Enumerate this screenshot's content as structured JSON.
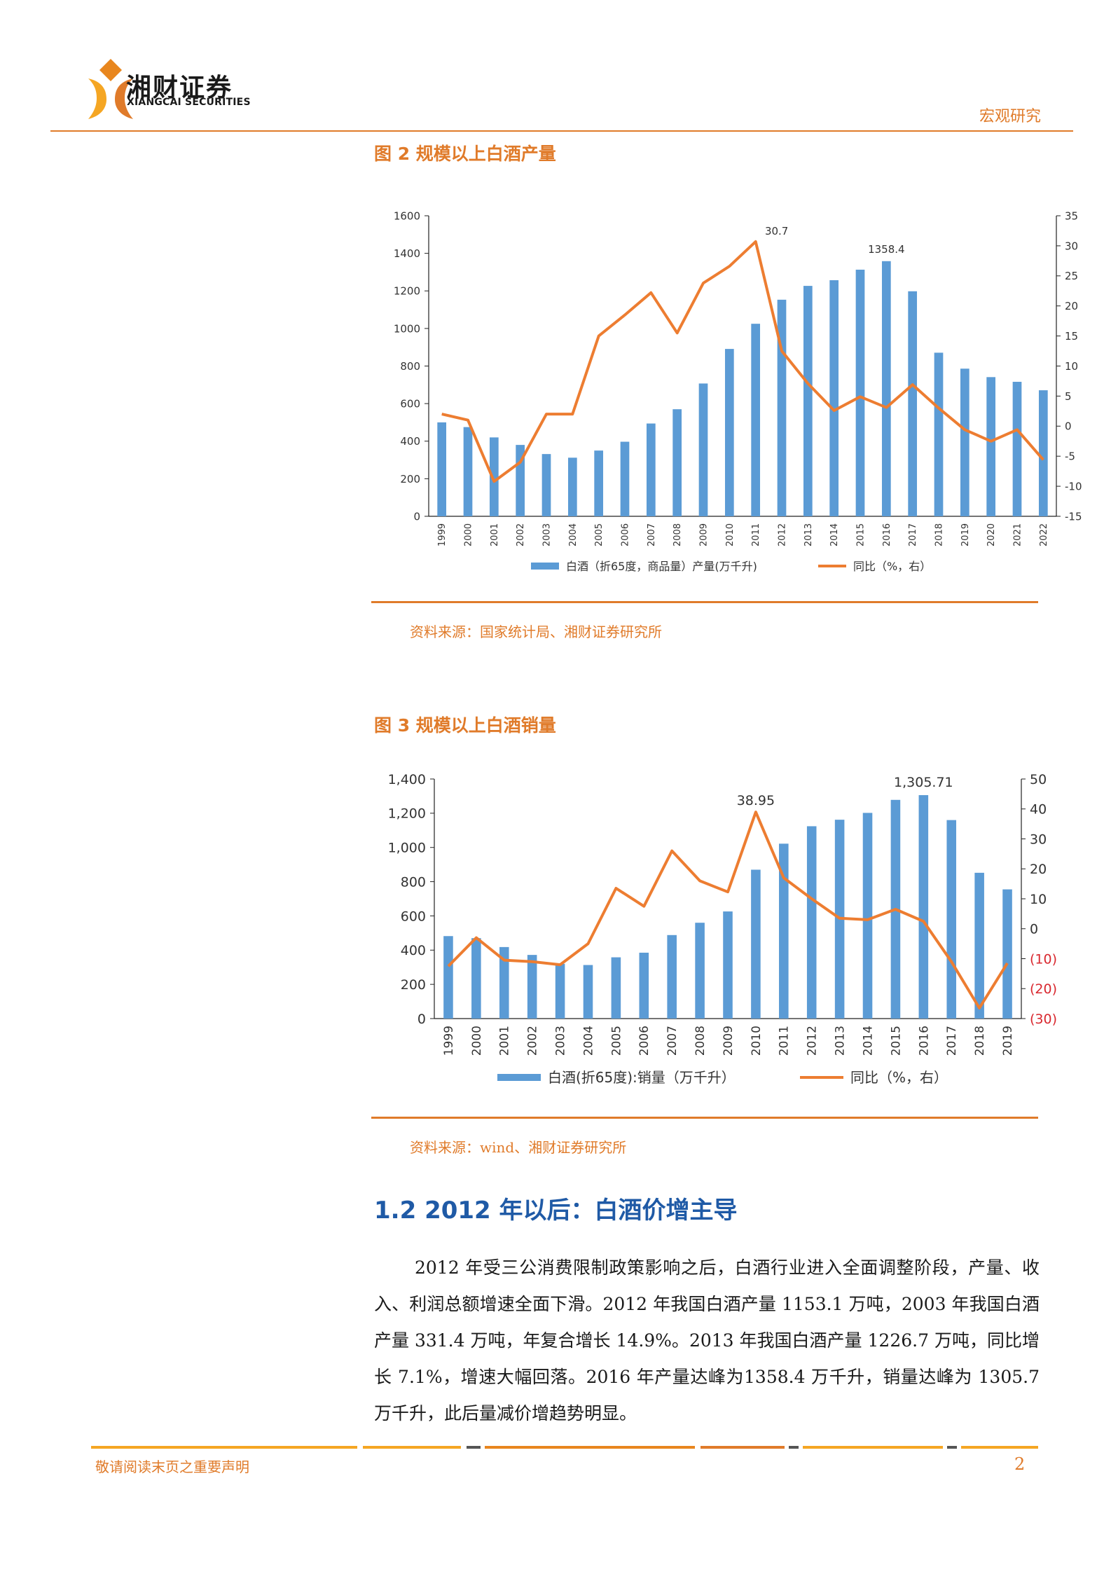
{
  "header": {
    "logo_cn": "湘财证券",
    "logo_en": "XIANGCAI SECURITIES",
    "category": "宏观研究"
  },
  "figure2": {
    "title": "图 2 规模以上白酒产量",
    "source": "资料来源：国家统计局、湘财证券研究所"
  },
  "figure3": {
    "title": "图 3 规模以上白酒销量",
    "source": "资料来源：wind、湘财证券研究所"
  },
  "section": {
    "heading": "1.2 2012 年以后：白酒价增主导",
    "paragraph": "2012 年受三公消费限制政策影响之后，白酒行业进入全面调整阶段，产量、收入、利润总额增速全面下滑。2012 年我国白酒产量 1153.1 万吨，2003 年我国白酒产量 331.4 万吨，年复合增长 14.9%。2013 年我国白酒产量 1226.7 万吨，同比增长 7.1%，增速大幅回落。2016 年产量达峰为1358.4 万千升，销量达峰为 1305.7 万千升，此后量减价增趋势明显。"
  },
  "footer": {
    "note": "敬请阅读末页之重要声明",
    "page": "2"
  },
  "chart_data": [
    {
      "type": "bar+line",
      "categories": [
        "1999",
        "2000",
        "2001",
        "2002",
        "2003",
        "2004",
        "2005",
        "2006",
        "2007",
        "2008",
        "2009",
        "2010",
        "2011",
        "2012",
        "2013",
        "2014",
        "2015",
        "2016",
        "2017",
        "2018",
        "2019",
        "2020",
        "2021",
        "2022"
      ],
      "series": [
        {
          "name": "白酒（折65度，商品量）产量(万千升)",
          "type": "bar",
          "axis": "left",
          "color": "#5b9bd5",
          "values": [
            500,
            475,
            420,
            380,
            331.4,
            312,
            350,
            397,
            494,
            570,
            707,
            891,
            1025,
            1153.1,
            1226.7,
            1257,
            1313,
            1358.4,
            1198,
            871,
            786,
            741,
            716,
            671
          ]
        },
        {
          "name": "同比（%，右）",
          "type": "line",
          "axis": "right",
          "color": "#ed7d31",
          "values": [
            2,
            1,
            -9.2,
            -6,
            2,
            2,
            15,
            18.5,
            22.2,
            15.5,
            23.8,
            26.6,
            30.7,
            12.5,
            7.1,
            2.6,
            4.9,
            3.1,
            6.9,
            3,
            -0.6,
            -2.5,
            -0.6,
            -5.6
          ]
        }
      ],
      "annotations": [
        "30.7",
        "1358.4"
      ],
      "ylim_left": [
        0,
        1600
      ],
      "ylim_right": [
        -15,
        35
      ],
      "left_ticks": [
        "0",
        "200",
        "400",
        "600",
        "800",
        "1000",
        "1200",
        "1400",
        "1600"
      ],
      "right_ticks": [
        "-15",
        "-10",
        "-5",
        "0",
        "5",
        "10",
        "15",
        "20",
        "25",
        "30",
        "35"
      ],
      "legend": "bottom"
    },
    {
      "type": "bar+line",
      "categories": [
        "1999",
        "2000",
        "2001",
        "2002",
        "2003",
        "2004",
        "2005",
        "2006",
        "2007",
        "2008",
        "2009",
        "2010",
        "2011",
        "2012",
        "2013",
        "2014",
        "2015",
        "2016",
        "2017",
        "2018",
        "2019"
      ],
      "series": [
        {
          "name": "白酒(折65度):销量（万千升）",
          "type": "bar",
          "axis": "left",
          "color": "#5b9bd5",
          "values": [
            482,
            470,
            418,
            372,
            320,
            313,
            358,
            385,
            488,
            560,
            626,
            870,
            1022,
            1124,
            1162,
            1202,
            1278,
            1305.71,
            1160,
            852,
            755
          ]
        },
        {
          "name": "同比（%，右）",
          "type": "line",
          "axis": "right",
          "color": "#ed7d31",
          "values": [
            -12.5,
            -3,
            -10.5,
            -11,
            -12,
            -5,
            13.5,
            7.5,
            26,
            16,
            12.3,
            38.95,
            17,
            10,
            3.5,
            3,
            6.5,
            2.5,
            -11,
            -26.5,
            -11.5
          ]
        }
      ],
      "annotations": [
        "38.95",
        "1,305.71"
      ],
      "ylim_left": [
        0,
        1400
      ],
      "ylim_right": [
        -30,
        50
      ],
      "left_ticks": [
        "0",
        "200",
        "400",
        "600",
        "800",
        "1,000",
        "1,200",
        "1,400"
      ],
      "right_ticks": [
        "(30)",
        "(20)",
        "(10)",
        "0",
        "10",
        "20",
        "30",
        "40",
        "50"
      ],
      "legend": "bottom"
    }
  ]
}
